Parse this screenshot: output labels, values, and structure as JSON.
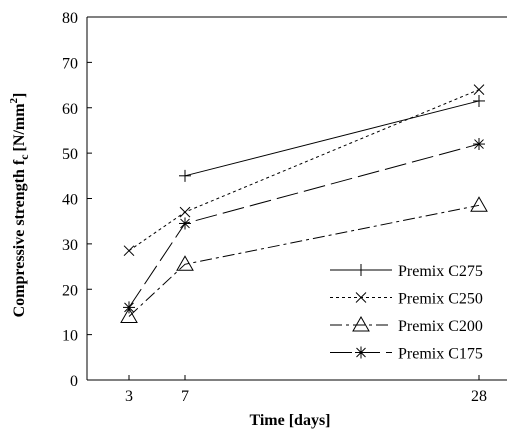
{
  "chart_data": {
    "type": "line",
    "title": "",
    "xlabel": "Time [days]",
    "ylabel_main": "Compressive strength f",
    "ylabel_sub": "c",
    "ylabel_unit": "[N/mm",
    "ylabel_sup": "2",
    "ylabel_close": "]",
    "x_ticks": [
      "3",
      "7",
      "28"
    ],
    "y_ticks": [
      "0",
      "10",
      "20",
      "30",
      "40",
      "50",
      "60",
      "70",
      "80"
    ],
    "ylim": [
      0,
      80
    ],
    "legend_position": "right",
    "series": [
      {
        "name": "Premix C275",
        "x": [
          7,
          28
        ],
        "values": [
          45,
          61.5
        ],
        "dash": "",
        "marker": "plus"
      },
      {
        "name": "Premix C250",
        "x": [
          3,
          7,
          28
        ],
        "values": [
          28.5,
          37,
          64
        ],
        "dash": "3,3",
        "marker": "cross"
      },
      {
        "name": "Premix C200",
        "x": [
          3,
          7,
          28
        ],
        "values": [
          14,
          25.5,
          38.5
        ],
        "dash": "12,4,3,4",
        "marker": "triangle"
      },
      {
        "name": "Premix C175",
        "x": [
          3,
          7,
          28
        ],
        "values": [
          16,
          34.5,
          52
        ],
        "dash": "22,6",
        "marker": "asterisk"
      }
    ]
  }
}
